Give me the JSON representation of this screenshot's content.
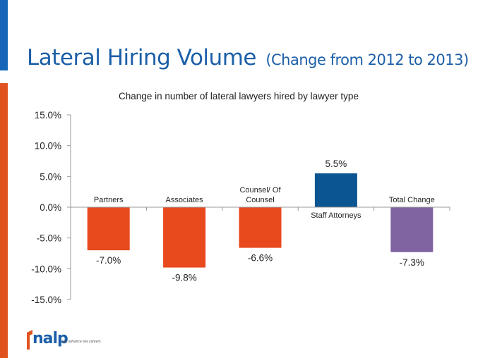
{
  "slide": {
    "title": "Lateral Hiring Volume",
    "subtitle": "(Change from 2012 to 2013)"
  },
  "logo": {
    "name": "nalp",
    "tagline": "We advance law careers"
  },
  "colors": {
    "accent_top": "#1566b8",
    "accent_bottom": "#e0531f",
    "title": "#1c5fa8"
  },
  "chart_data": {
    "type": "bar",
    "title": "Change in number of lateral lawyers hired by lawyer type",
    "categories": [
      "Partners",
      "Associates",
      "Counsel/ Of Counsel",
      "Staff Attorneys",
      "Total Change"
    ],
    "category_lines": [
      [
        "Partners"
      ],
      [
        "Associates"
      ],
      [
        "Counsel/ Of",
        "Counsel"
      ],
      [
        "Staff Attorneys"
      ],
      [
        "Total Change"
      ]
    ],
    "values": [
      -7.0,
      -9.8,
      -6.6,
      5.5,
      -7.3
    ],
    "value_labels": [
      "-7.0%",
      "-9.8%",
      "-6.6%",
      "5.5%",
      "-7.3%"
    ],
    "bar_colors": [
      "#e8491d",
      "#e8491d",
      "#e8491d",
      "#0b5592",
      "#8064a2"
    ],
    "ylim": [
      -15,
      15
    ],
    "yticks": [
      15,
      10,
      5,
      0,
      -5,
      -10,
      -15
    ],
    "ytick_labels": [
      "15.0%",
      "10.0%",
      "5.0%",
      "0.0%",
      "-5.0%",
      "-10.0%",
      "-15.0%"
    ],
    "xlabel": "",
    "ylabel": "",
    "legend": "none",
    "grid": false
  }
}
